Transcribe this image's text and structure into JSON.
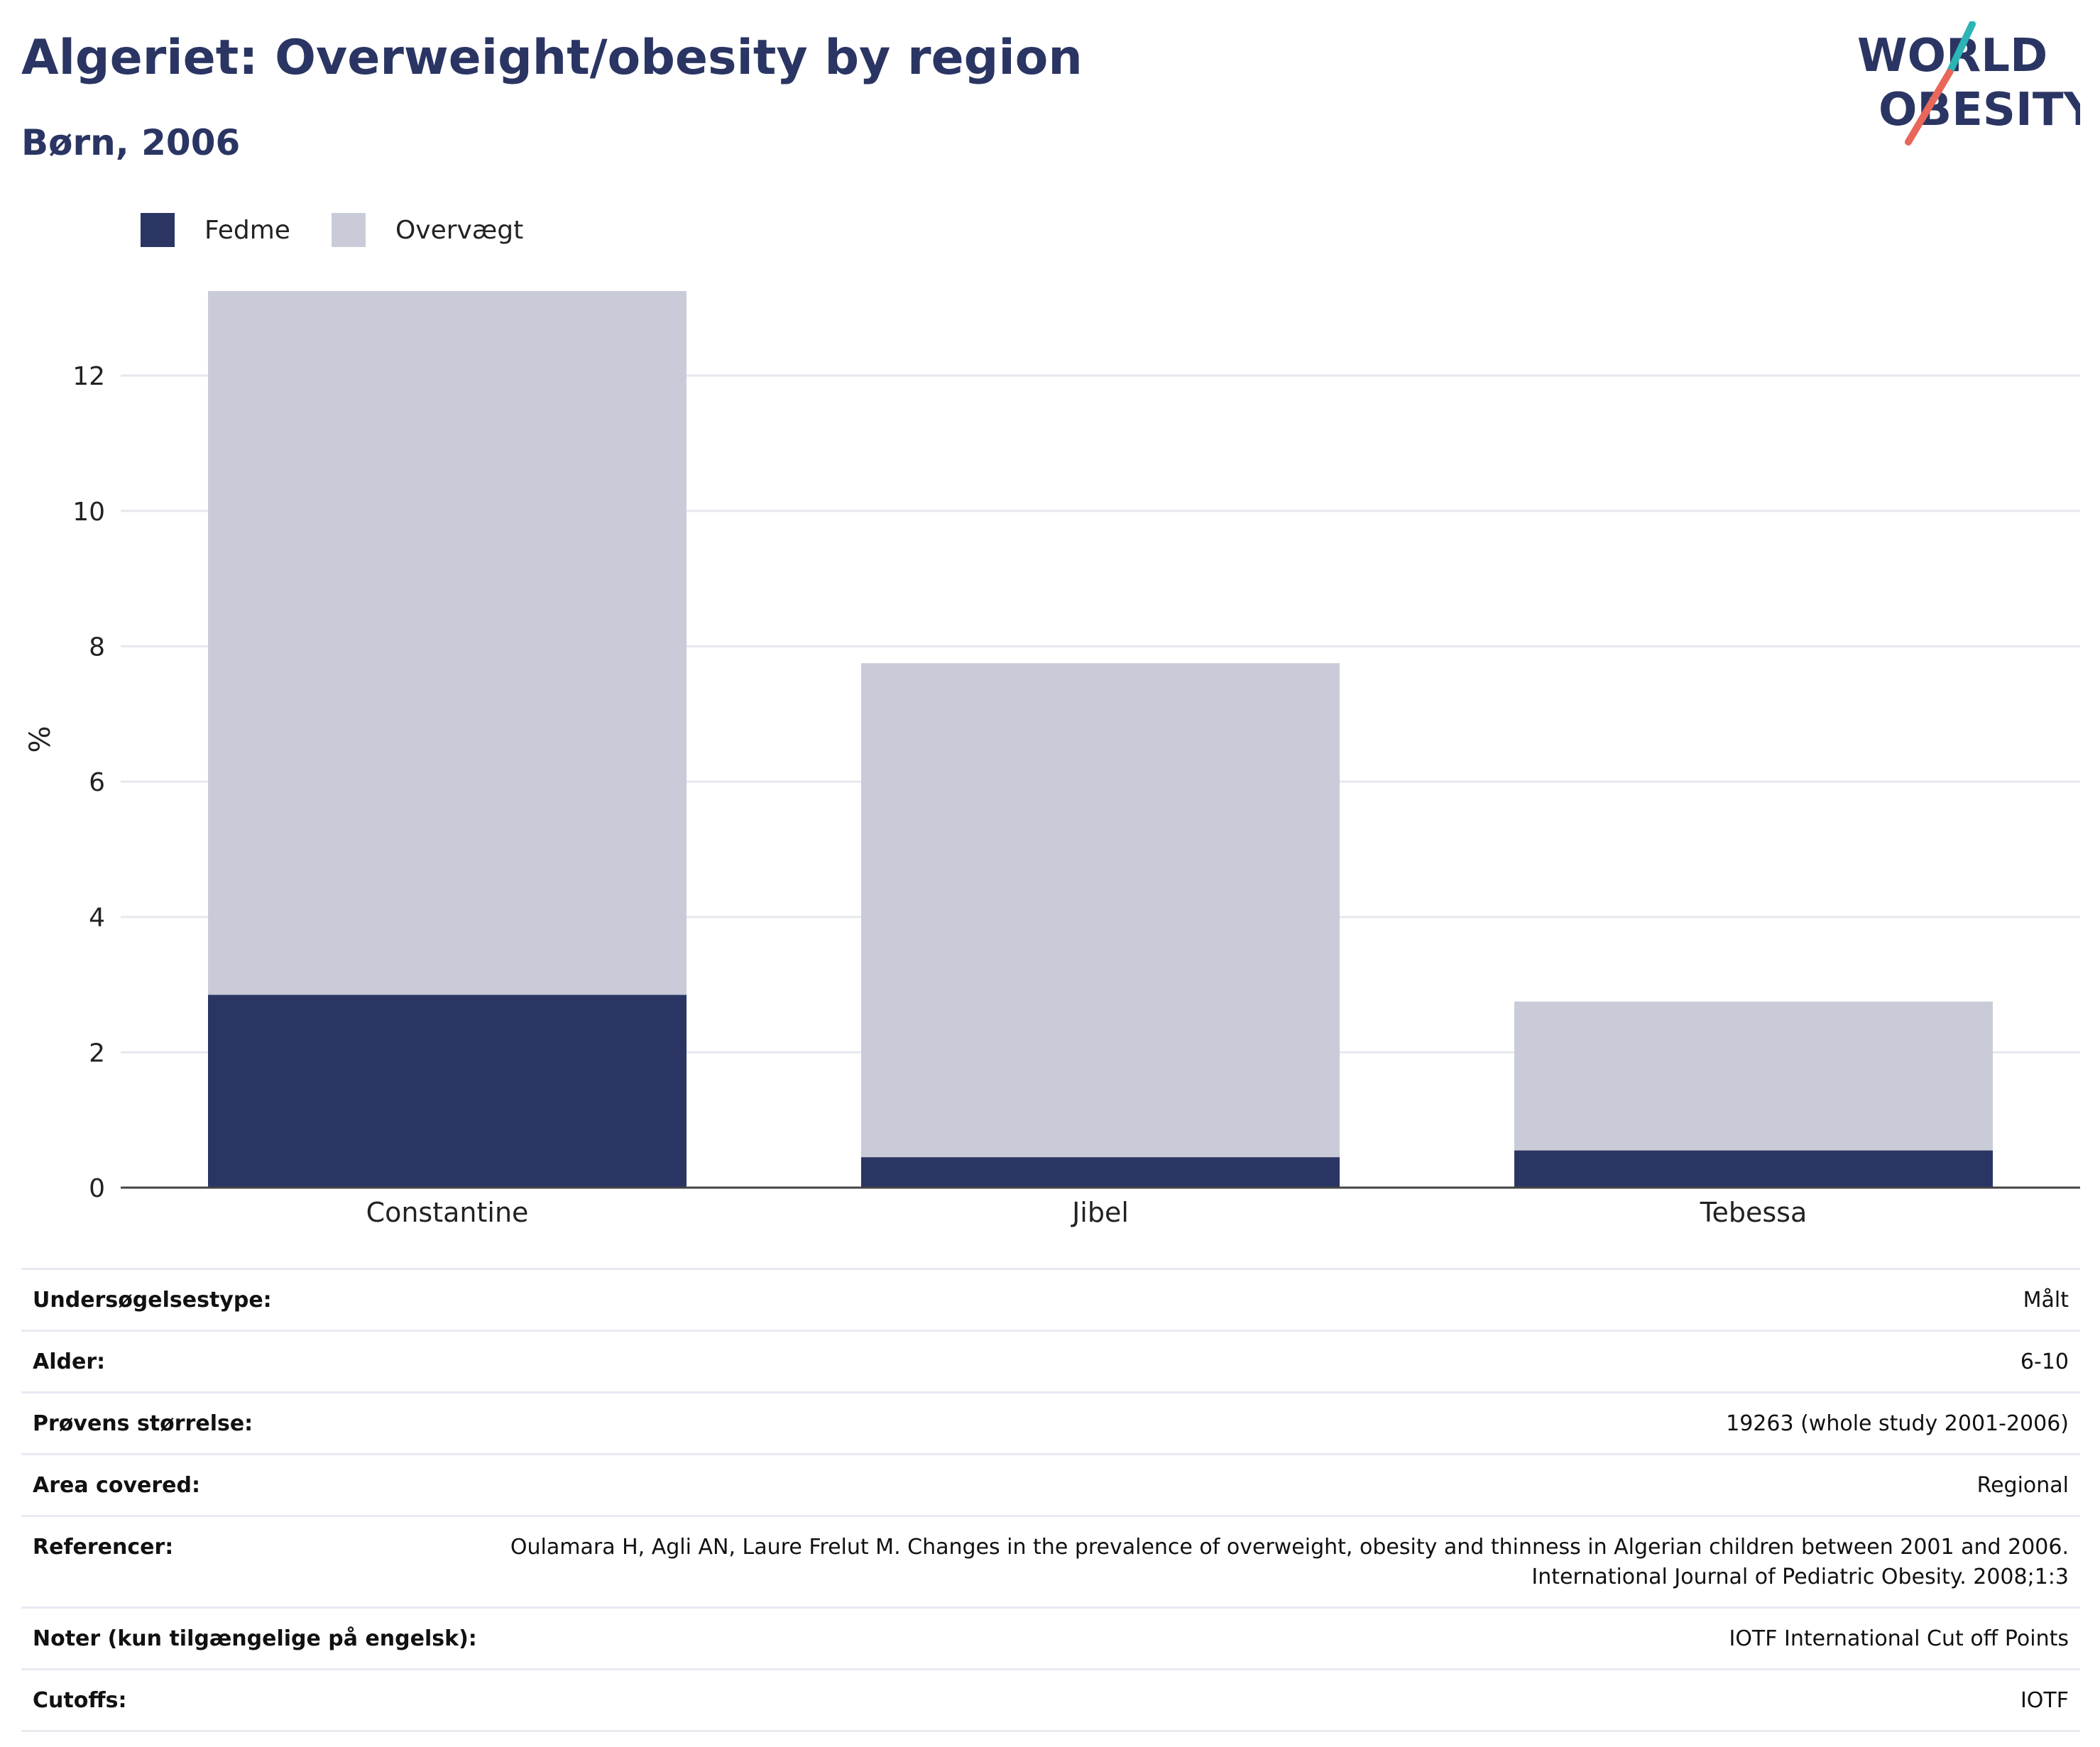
{
  "header": {
    "title": "Algeriet: Overweight/obesity by region",
    "subtitle": "Børn, 2006"
  },
  "logo": {
    "line1": "WORLD",
    "line2": "OBESITY",
    "accent_colors": [
      "#2bb5b5",
      "#e8675a"
    ]
  },
  "legend": [
    {
      "label": "Fedme",
      "color": "#2a3563"
    },
    {
      "label": "Overvægt",
      "color": "#c9ccd8"
    }
  ],
  "chart_data": {
    "type": "bar",
    "stacked": true,
    "categories": [
      "Constantine",
      "Jibel",
      "Tebessa"
    ],
    "series": [
      {
        "name": "Fedme",
        "color": "#2a3563",
        "values": [
          2.85,
          0.45,
          0.55
        ]
      },
      {
        "name": "Overvægt",
        "color": "#c9ccd8",
        "values": [
          10.4,
          7.3,
          2.2
        ]
      }
    ],
    "ylabel": "%",
    "xlabel": "",
    "ylim": [
      0,
      13.25
    ],
    "yticks": [
      0,
      2,
      4,
      6,
      8,
      10,
      12
    ],
    "grid": true,
    "legend_position": "top-left"
  },
  "meta": [
    {
      "label": "Undersøgelsestype:",
      "value": "Målt"
    },
    {
      "label": "Alder:",
      "value": "6-10"
    },
    {
      "label": "Prøvens størrelse:",
      "value": "19263 (whole study 2001-2006)"
    },
    {
      "label": "Area covered:",
      "value": "Regional"
    },
    {
      "label": "Referencer:",
      "value": "Oulamara H, Agli AN, Laure Frelut M. Changes in the prevalence of overweight, obesity and thinness in Algerian children between 2001 and 2006. International Journal of Pediatric Obesity. 2008;1:3"
    },
    {
      "label": "Noter (kun tilgængelige på engelsk):",
      "value": "IOTF International Cut off Points"
    },
    {
      "label": "Cutoffs:",
      "value": "IOTF"
    }
  ]
}
